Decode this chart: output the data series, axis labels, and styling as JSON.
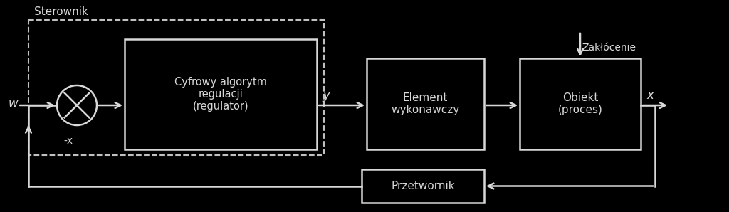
{
  "bg_color": "#000000",
  "fg_color": "#d8d8d8",
  "dashed_color": "#c0c0c0",
  "title_sterownik": "Sterownik",
  "label_w": "w",
  "label_neg_x": "-x",
  "label_y": "y",
  "label_x": "x",
  "label_zaklocenie": "Zakłócenie",
  "box1_text": "Cyfrowy algorytm\nregulacji\n(regulator)",
  "box2_text": "Element\nwykonawczy",
  "box3_text": "Obiekt\n(proces)",
  "box4_text": "Przetwornik",
  "figw": 10.24,
  "figh": 2.98,
  "dpi": 100
}
